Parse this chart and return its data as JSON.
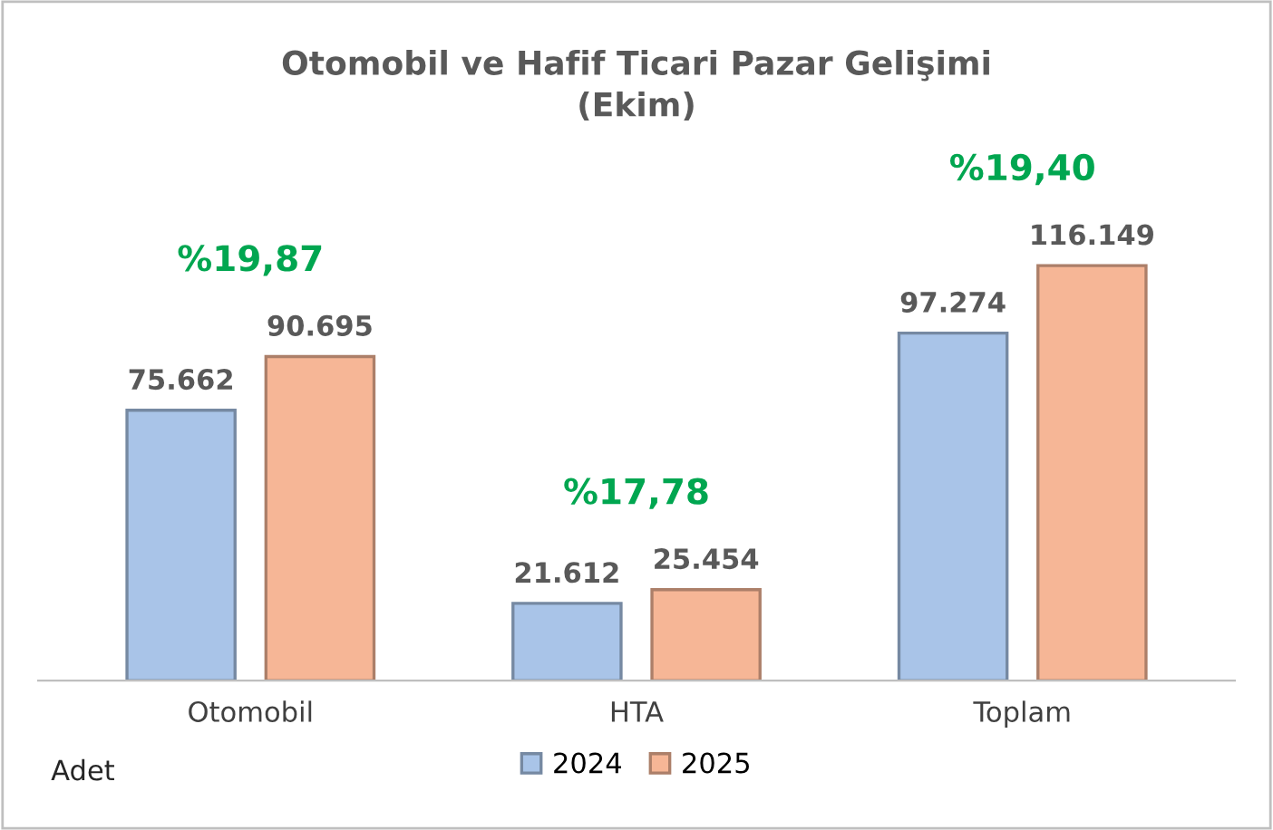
{
  "chart_data": {
    "type": "bar",
    "title": "Otomobil ve Hafif Ticari Pazar Gelişimi\n(Ekim)",
    "categories": [
      "Otomobil",
      "HTA",
      "Toplam"
    ],
    "series": [
      {
        "name": "2024",
        "color": "#a9c4e8",
        "values": [
          75662,
          21612,
          97274
        ],
        "value_labels": [
          "75.662",
          "21.612",
          "97.274"
        ]
      },
      {
        "name": "2025",
        "color": "#f6b696",
        "values": [
          90695,
          25454,
          116149
        ],
        "value_labels": [
          "90.695",
          "25.454",
          "116.149"
        ]
      }
    ],
    "annotations": [
      "%19,87",
      "%17,78",
      "%19,40",
      "Adet"
    ],
    "legend": "bottom",
    "grid": false
  }
}
